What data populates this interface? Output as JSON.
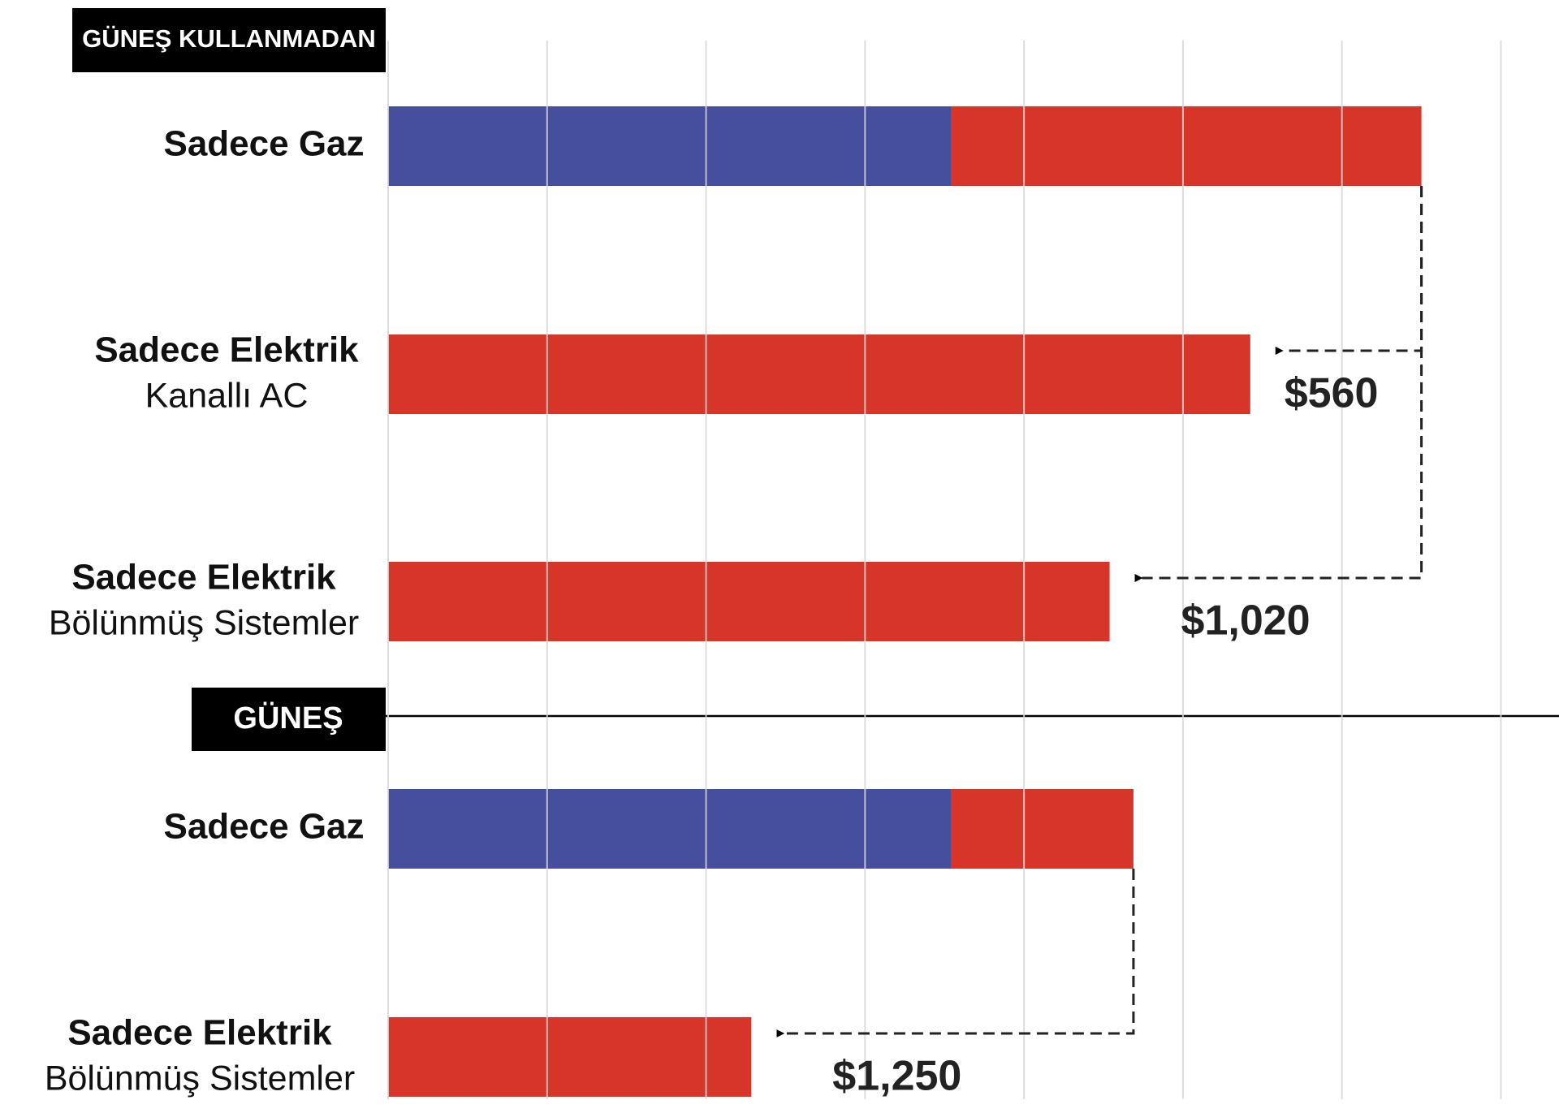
{
  "chart_data": {
    "type": "stacked-barh",
    "section_labels": [
      "GÜNEŞ KULLANMADAN",
      "GÜNEŞ"
    ],
    "categories": [
      "Sadece Gaz",
      "Sadece Elektrik",
      "Sadece Elektrik",
      "Sadece Gaz",
      "Sadece Elektrik"
    ],
    "category_subtitles": [
      null,
      "Kanallı AC",
      "Bölünmüş Sistemler",
      null,
      "Bölünmüş Sistemler"
    ],
    "series": [
      {
        "color": "#464e9e",
        "values": [
          1843,
          null,
          null,
          1843,
          null
        ]
      },
      {
        "color": "#d8352a",
        "values": [
          1537,
          2820,
          2360,
          595,
          1188
        ]
      }
    ],
    "savings": {
      "values": [
        560,
        1020,
        1250
      ],
      "value_labels": [
        "$560",
        "$1,020",
        "$1,250"
      ]
    },
    "xlim": [
      0,
      3830
    ],
    "xticks": [
      0,
      520,
      1040,
      1560,
      2080,
      2600,
      3120,
      3640
    ],
    "grid": true
  }
}
